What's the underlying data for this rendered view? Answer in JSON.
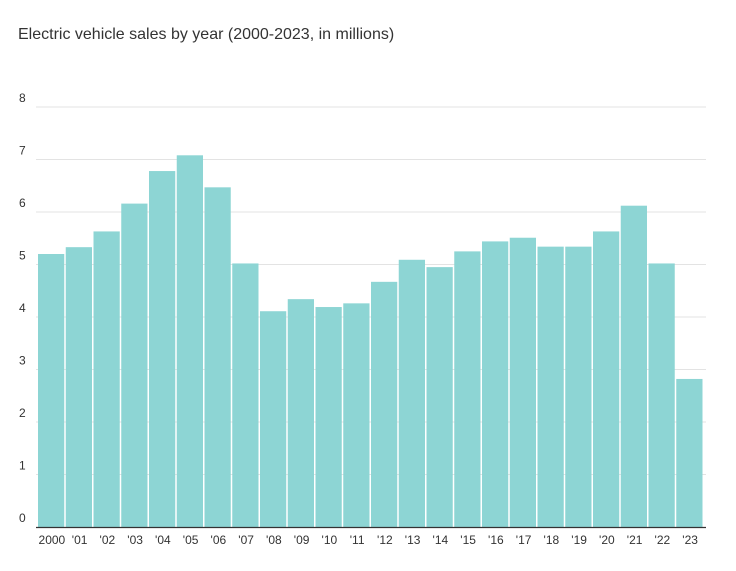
{
  "chart_data": {
    "type": "bar",
    "title": "Electric vehicle sales by year (2000-2023, in millions)",
    "xlabel": "",
    "ylabel": "",
    "categories": [
      "2000",
      "'01",
      "'02",
      "'03",
      "'04",
      "'05",
      "'06",
      "'07",
      "'08",
      "'09",
      "'10",
      "'11",
      "'12",
      "'13",
      "'14",
      "'15",
      "'16",
      "'17",
      "'18",
      "'19",
      "'20",
      "'21",
      "'22",
      "'23"
    ],
    "values": [
      5.2,
      5.33,
      5.63,
      6.16,
      6.78,
      7.08,
      6.47,
      5.02,
      4.11,
      4.34,
      4.19,
      4.26,
      4.67,
      5.09,
      4.95,
      5.25,
      5.44,
      5.51,
      5.34,
      5.34,
      5.63,
      6.12,
      5.02,
      2.82
    ],
    "ylim": [
      0,
      8
    ],
    "yticks": [
      "0",
      "1",
      "2",
      "3",
      "4",
      "5",
      "6",
      "7",
      "8"
    ],
    "grid": true,
    "legend": "none",
    "colors": {
      "bar": "#8dd5d4",
      "bar_edge": "#ffffff",
      "grid": "#e3e3e3",
      "axis": "#333333",
      "text": "#333333"
    }
  }
}
